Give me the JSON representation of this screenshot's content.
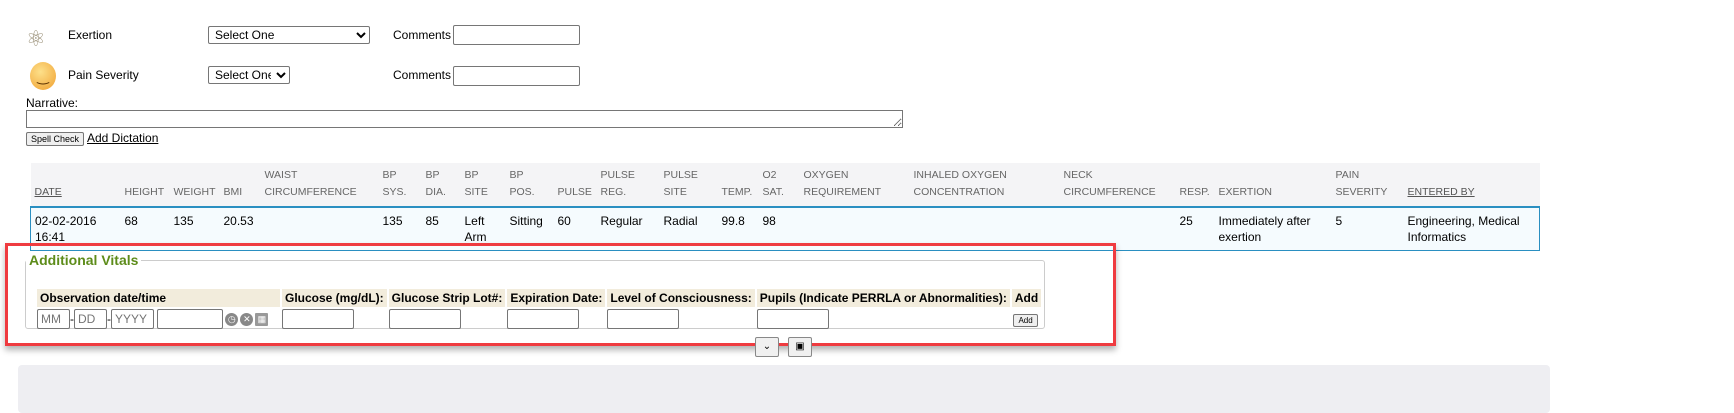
{
  "exertion": {
    "icon": "exertion-molecule-icon",
    "label": "Exertion",
    "select": "Select One",
    "comments_label": "Comments",
    "comments_value": ""
  },
  "pain": {
    "icon": "smiley-face-icon",
    "label": "Pain Severity",
    "select": "Select One",
    "comments_label": "Comments",
    "comments_value": ""
  },
  "narrative": {
    "label": "Narrative:",
    "value": "",
    "spell_check": "Spell Check",
    "add_dictation": "Add Dictation"
  },
  "vitals_table": {
    "headers": [
      [
        "",
        "DATE"
      ],
      [
        "",
        "HEIGHT"
      ],
      [
        "",
        "WEIGHT"
      ],
      [
        "",
        "BMI"
      ],
      [
        "WAIST",
        "CIRCUMFERENCE"
      ],
      [
        "BP",
        "SYS."
      ],
      [
        "BP",
        "DIA."
      ],
      [
        "BP",
        "SITE"
      ],
      [
        "BP",
        "POS."
      ],
      [
        "",
        "PULSE"
      ],
      [
        "PULSE",
        "REG."
      ],
      [
        "PULSE",
        "SITE"
      ],
      [
        "",
        "TEMP."
      ],
      [
        "O2",
        "SAT."
      ],
      [
        "OXYGEN",
        "REQUIREMENT"
      ],
      [
        "INHALED OXYGEN",
        "CONCENTRATION"
      ],
      [
        "NECK",
        "CIRCUMFERENCE"
      ],
      [
        "",
        "RESP."
      ],
      [
        "",
        "EXERTION"
      ],
      [
        "PAIN",
        "SEVERITY"
      ],
      [
        "",
        "ENTERED BY"
      ]
    ],
    "rows": [
      [
        "02-02-2016 16:41",
        "68",
        "135",
        "20.53",
        "",
        "135",
        "85",
        "Left Arm",
        "Sitting",
        "60",
        "Regular",
        "Radial",
        "99.8",
        "98",
        "",
        "",
        "",
        "25",
        "Immediately after exertion",
        "5",
        "Engineering, Medical Informatics"
      ]
    ]
  },
  "additional_vitals": {
    "title": "Additional Vitals",
    "headers": [
      "Observation date/time",
      "Glucose (mg/dL):",
      "Glucose Strip Lot#:",
      "Expiration Date:",
      "Level of Consciousness:",
      "Pupils (Indicate PERRLA or Abnormalities):",
      "Add"
    ],
    "date_placeholders": {
      "mm": "MM",
      "dd": "DD",
      "yyyy": "YYYY"
    },
    "add_button": "Add"
  },
  "colors": {
    "accent_green": "#5d8c1a",
    "highlight_red": "#ef3b40",
    "row_border": "#2a8fc1"
  }
}
